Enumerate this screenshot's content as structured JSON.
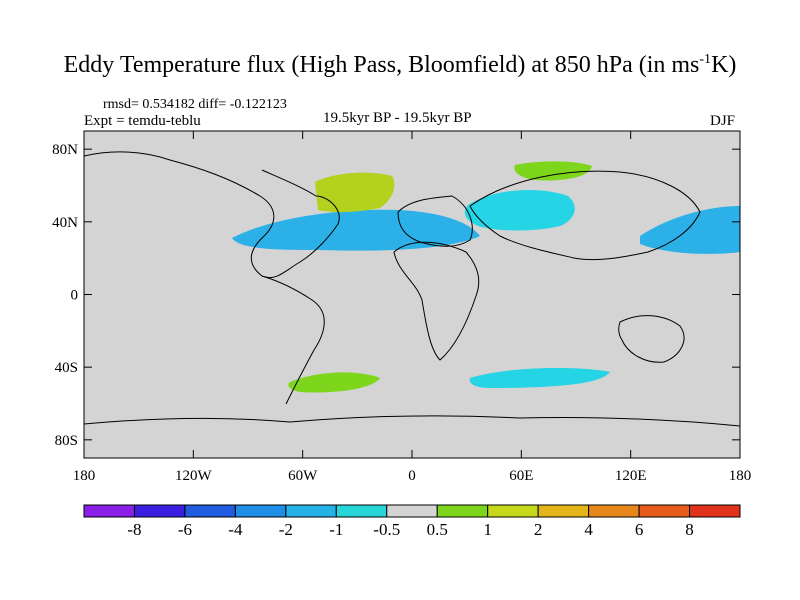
{
  "title_main": "Eddy Temperature flux (High Pass, Bloomfield) at 850 hPa (in ms",
  "title_sup": "-1",
  "title_end": "K)",
  "stats": "rmsd= 0.534182 diff= -0.122123",
  "expt": "Expt = temdu-teblu",
  "period": "19.5kyr BP - 19.5kyr BP",
  "season": "DJF",
  "map": {
    "lat_ticks": [
      "80N",
      "40N",
      "0",
      "40S",
      "80S"
    ],
    "lon_ticks": [
      "180",
      "120W",
      "60W",
      "0",
      "60E",
      "120E",
      "180"
    ],
    "background_color": "#d4d4d4",
    "regions": [
      {
        "name": "north-atlantic-positive",
        "level": 2,
        "color": "#b4d11e"
      },
      {
        "name": "north-atlantic-negative",
        "level": -2,
        "color": "#2cb0e8"
      },
      {
        "name": "asia-negative",
        "level": -1,
        "color": "#25d4e5"
      },
      {
        "name": "north-pacific-negative",
        "level": -2,
        "color": "#2cb0e8"
      },
      {
        "name": "arctic-positive",
        "level": 1,
        "color": "#7ed61c"
      },
      {
        "name": "southern-ocean-positive",
        "level": 1,
        "color": "#7ed61c"
      },
      {
        "name": "southern-ocean-negative",
        "level": -1,
        "color": "#25d4e5"
      }
    ]
  },
  "colorbar": {
    "labels": [
      "-8",
      "-6",
      "-4",
      "-2",
      "-1",
      "-0.5",
      "0.5",
      "1",
      "2",
      "4",
      "6",
      "8"
    ],
    "colors": [
      "#8a1fe8",
      "#3a1fe0",
      "#1f5ce0",
      "#1e8ee6",
      "#25b2e6",
      "#26d6d8",
      "#d4d4d4",
      "#7ed61c",
      "#c5d81a",
      "#e3b51a",
      "#e7871b",
      "#e65a1a",
      "#e0321a"
    ]
  }
}
